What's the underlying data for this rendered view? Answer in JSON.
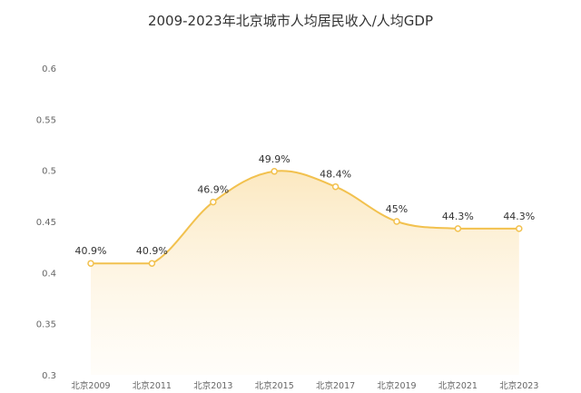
{
  "chart_data": {
    "type": "area",
    "title": "2009-2023年北京城市人均居民收入/人均GDP",
    "xlabel": "",
    "ylabel": "",
    "categories": [
      "北京2009",
      "北京2011",
      "北京2013",
      "北京2015",
      "北京2017",
      "北京2019",
      "北京2021",
      "北京2023"
    ],
    "values": [
      0.409,
      0.409,
      0.469,
      0.499,
      0.484,
      0.45,
      0.443,
      0.443
    ],
    "data_labels": [
      "40.9%",
      "40.9%",
      "46.9%",
      "49.9%",
      "48.4%",
      "45%",
      "44.3%",
      "44.3%"
    ],
    "ylim": [
      0.3,
      0.6
    ],
    "yticks": [
      "0.3",
      "0.35",
      "0.4",
      "0.45",
      "0.5",
      "0.55",
      "0.6"
    ],
    "grid": false,
    "smooth": true,
    "colors": {
      "line": "#f2c14e",
      "fill_top": "#fbe7bd",
      "fill_bottom": "#fffaf0",
      "marker_fill": "#ffffff"
    }
  }
}
